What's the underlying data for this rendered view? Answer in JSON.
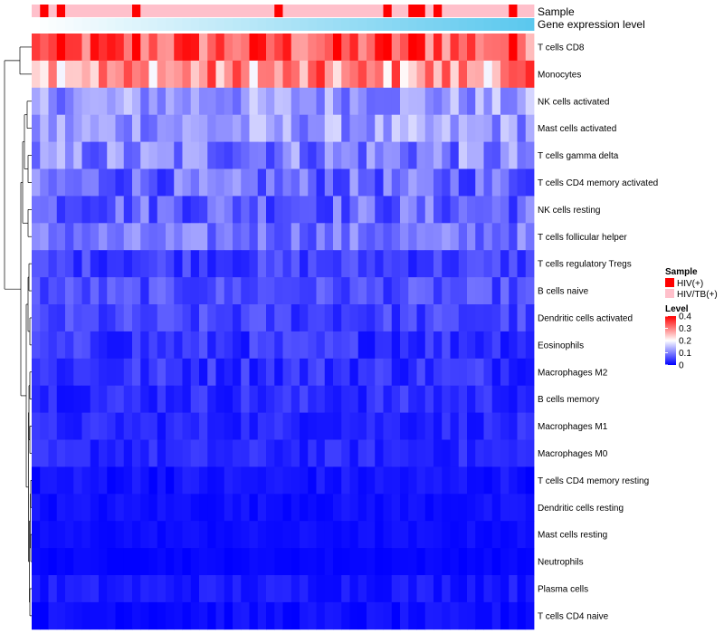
{
  "chart_data": {
    "type": "heatmap",
    "title": "",
    "n_samples": 60,
    "annotations": {
      "sample": {
        "label": "Sample",
        "codes": [
          1,
          0,
          1,
          0,
          1,
          1,
          1,
          1,
          1,
          1,
          1,
          1,
          0,
          1,
          1,
          1,
          1,
          1,
          1,
          1,
          1,
          1,
          1,
          1,
          1,
          1,
          1,
          1,
          1,
          0,
          1,
          1,
          1,
          1,
          1,
          1,
          1,
          1,
          1,
          1,
          1,
          1,
          0,
          1,
          1,
          0,
          0,
          1,
          0,
          1,
          1,
          1,
          1,
          1,
          1,
          1,
          1,
          0,
          1,
          1
        ],
        "levels": [
          {
            "name": "HIV(+)",
            "color": "#ff0000"
          },
          {
            "name": "HIV/TB(+)",
            "color": "#ffc0cb"
          }
        ]
      },
      "gene_expression": {
        "label": "Gene expression level",
        "low_color": "#ffffff",
        "high_color": "#5bc8ee"
      }
    },
    "rows": [
      "T cells CD8",
      "Monocytes",
      "NK cells activated",
      "Mast cells activated",
      "T cells gamma delta",
      "T cells CD4 memory activated",
      "NK cells resting",
      "T cells follicular helper",
      "T cells regulatory  Tregs",
      "B cells naive",
      "Dendritic cells activated",
      "Eosinophils",
      "Macrophages M2",
      "B cells memory",
      "Macrophages M1",
      "Macrophages M0",
      "T cells CD4 memory resting",
      "Dendritic cells resting",
      "Mast cells resting",
      "Neutrophils",
      "Plasma cells",
      "T cells CD4 naive"
    ],
    "row_means": [
      0.33,
      0.28,
      0.12,
      0.12,
      0.1,
      0.08,
      0.08,
      0.09,
      0.05,
      0.06,
      0.05,
      0.04,
      0.04,
      0.035,
      0.03,
      0.03,
      0.015,
      0.012,
      0.01,
      0.005,
      0.02,
      0.01
    ],
    "row_spread": [
      0.08,
      0.09,
      0.05,
      0.05,
      0.06,
      0.05,
      0.05,
      0.04,
      0.03,
      0.03,
      0.03,
      0.03,
      0.03,
      0.025,
      0.02,
      0.02,
      0.015,
      0.01,
      0.008,
      0.005,
      0.015,
      0.012
    ],
    "value_range": [
      0,
      0.4
    ],
    "dendrogram": "row",
    "legend": {
      "sample_title": "Sample",
      "level_title": "Level",
      "level_ticks": [
        0.4,
        0.3,
        0.2,
        0.1,
        0
      ],
      "level_tick_labels": [
        "0.4",
        "0.3",
        "0.2",
        "0.1",
        "0"
      ],
      "placement": "right",
      "color_low": "#0000ff",
      "color_mid": "#ffffff",
      "color_high": "#ff0000"
    }
  }
}
